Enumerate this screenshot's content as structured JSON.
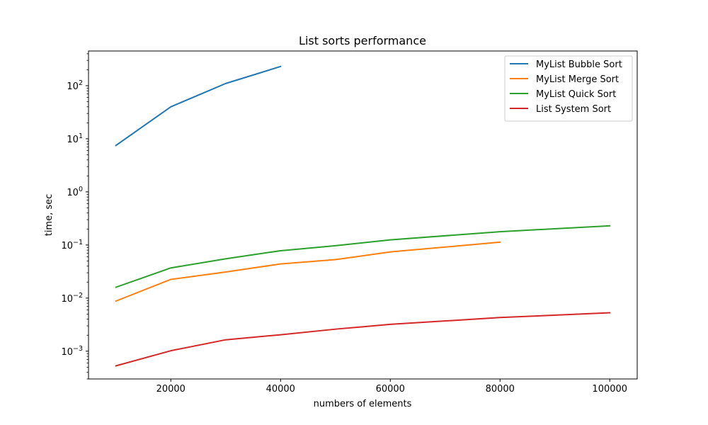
{
  "chart_data": {
    "type": "line",
    "title": "List sorts performance",
    "xlabel": "numbers of elements",
    "ylabel": "time, sec",
    "yscale": "log",
    "xlim": [
      5000,
      105000
    ],
    "ylim": [
      0.0003,
      450
    ],
    "x_ticks": [
      20000,
      40000,
      60000,
      80000,
      100000
    ],
    "x_tick_labels": [
      "20000",
      "40000",
      "60000",
      "80000",
      "100000"
    ],
    "y_ticks": [
      {
        "value": 0.001,
        "base": "10",
        "exp": "−3"
      },
      {
        "value": 0.01,
        "base": "10",
        "exp": "−2"
      },
      {
        "value": 0.1,
        "base": "10",
        "exp": "−1"
      },
      {
        "value": 1,
        "base": "10",
        "exp": "0"
      },
      {
        "value": 10,
        "base": "10",
        "exp": "1"
      },
      {
        "value": 100,
        "base": "10",
        "exp": "2"
      }
    ],
    "grid": false,
    "legend_position": "top-right",
    "series": [
      {
        "name": "MyList Bubble Sort",
        "color": "#1f77b4",
        "x": [
          10000,
          20000,
          30000,
          40000
        ],
        "y": [
          7.5,
          40,
          110,
          230
        ]
      },
      {
        "name": "MyList Merge Sort",
        "color": "#ff7f0e",
        "x": [
          10000,
          20000,
          30000,
          40000,
          50000,
          60000,
          80000
        ],
        "y": [
          0.0088,
          0.0225,
          0.031,
          0.044,
          0.053,
          0.074,
          0.113
        ]
      },
      {
        "name": "MyList Quick Sort",
        "color": "#2ca02c",
        "x": [
          10000,
          20000,
          30000,
          40000,
          50000,
          60000,
          80000,
          100000
        ],
        "y": [
          0.016,
          0.037,
          0.055,
          0.078,
          0.097,
          0.125,
          0.178,
          0.23
        ]
      },
      {
        "name": "List System Sort",
        "color": "#d62728",
        "x": [
          10000,
          20000,
          30000,
          40000,
          50000,
          60000,
          80000,
          100000
        ],
        "y": [
          0.00053,
          0.00102,
          0.00164,
          0.00204,
          0.0026,
          0.0032,
          0.0043,
          0.0053
        ]
      }
    ]
  }
}
